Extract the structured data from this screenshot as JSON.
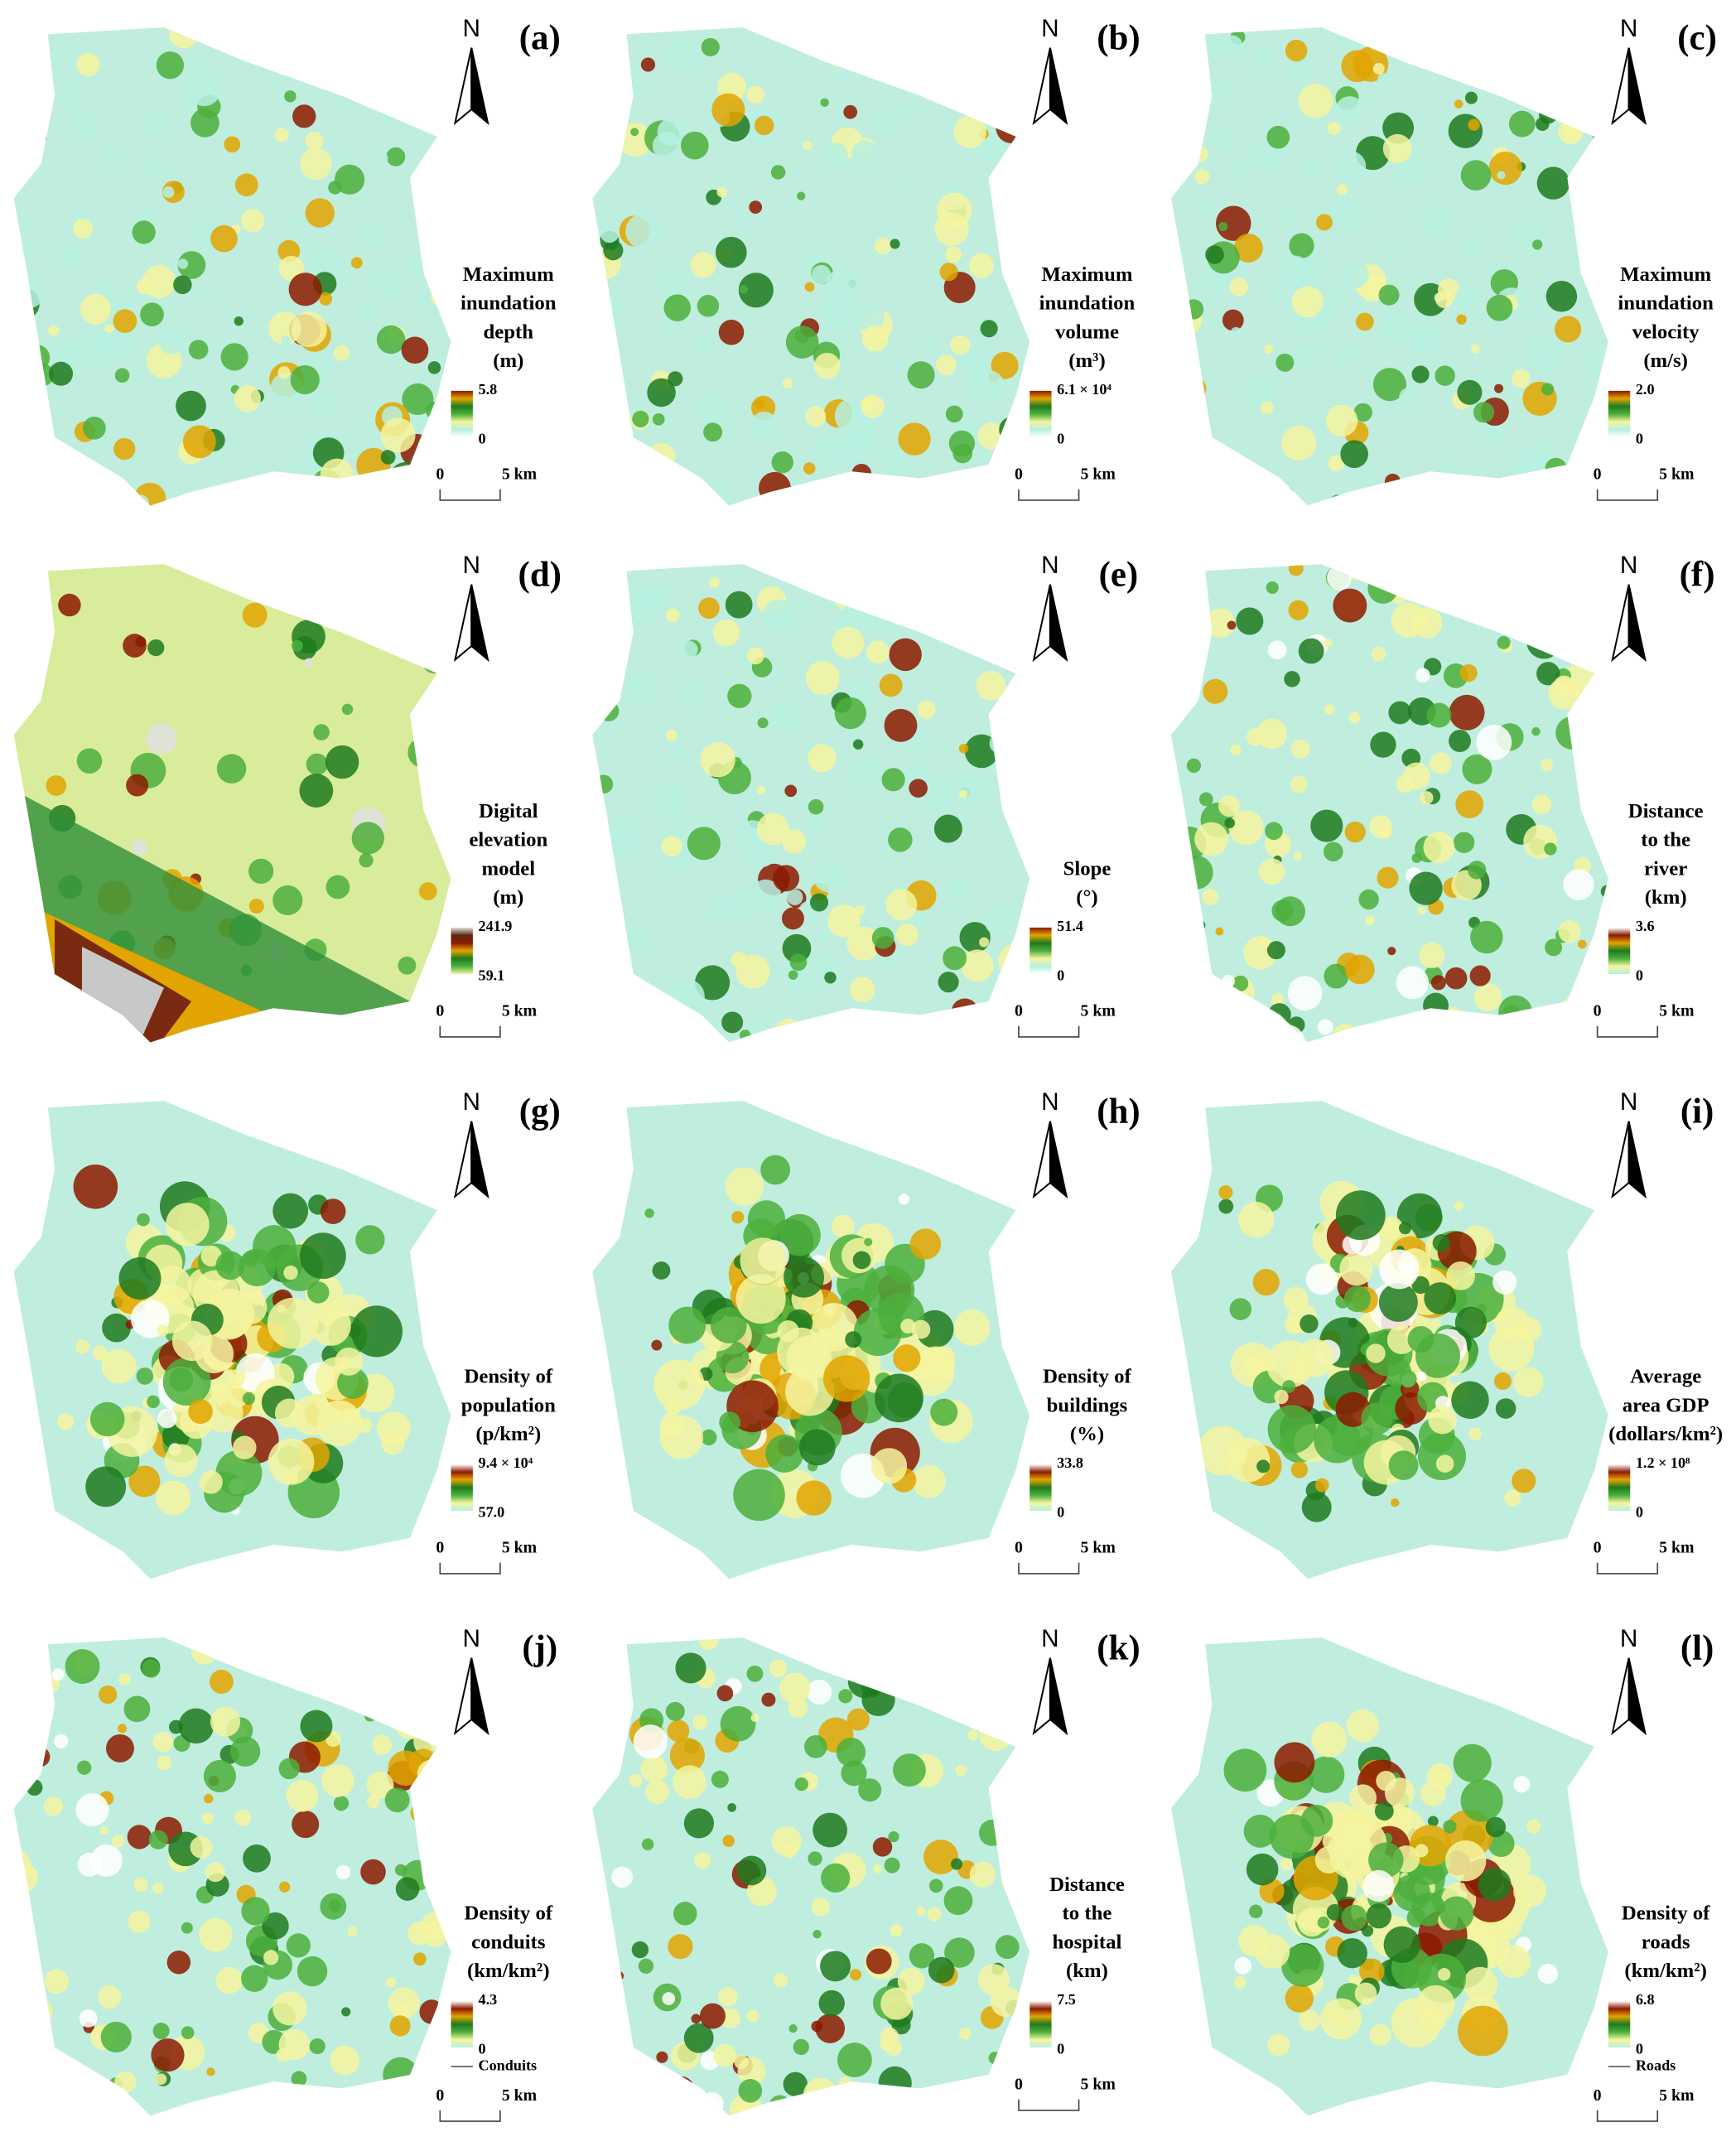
{
  "north_label": "N",
  "scale_bar": {
    "start": "0",
    "end": "5 km"
  },
  "panels": [
    {
      "label": "(a)",
      "title": [
        "Maximum",
        "inundation",
        "depth",
        "(m)"
      ],
      "max": "5.8",
      "min": "0"
    },
    {
      "label": "(b)",
      "title": [
        "Maximum",
        "inundation",
        "volume",
        "(m³)"
      ],
      "max": "6.1 × 10⁴",
      "min": "0"
    },
    {
      "label": "(c)",
      "title": [
        "Maximum",
        "inundation",
        "velocity",
        "(m/s)"
      ],
      "max": "2.0",
      "min": "0"
    },
    {
      "label": "(d)",
      "title": [
        "Digital",
        "elevation",
        "model",
        "(m)"
      ],
      "max": "241.9",
      "min": "59.1"
    },
    {
      "label": "(e)",
      "title": [
        "Slope",
        "(°)"
      ],
      "max": "51.4",
      "min": "0"
    },
    {
      "label": "(f)",
      "title": [
        "Distance",
        "to the",
        "river",
        "(km)"
      ],
      "max": "3.6",
      "min": "0"
    },
    {
      "label": "(g)",
      "title": [
        "Density of",
        "population",
        "(p/km²)"
      ],
      "max": "9.4 × 10⁴",
      "min": "57.0"
    },
    {
      "label": "(h)",
      "title": [
        "Density of",
        "buildings",
        "(%)"
      ],
      "max": "33.8",
      "min": "0"
    },
    {
      "label": "(i)",
      "title": [
        "Average",
        "area GDP",
        "(dollars/km²)"
      ],
      "max": "1.2 × 10⁸",
      "min": "0"
    },
    {
      "label": "(j)",
      "title": [
        "Density of",
        "conduits",
        "(km/km²)"
      ],
      "max": "4.3",
      "min": "0",
      "extra": "Conduits"
    },
    {
      "label": "(k)",
      "title": [
        "Distance",
        "to the",
        "hospital",
        "(km)"
      ],
      "max": "7.5",
      "min": "0"
    },
    {
      "label": "(l)",
      "title": [
        "Density of",
        "roads",
        "(km/km²)"
      ],
      "max": "6.8",
      "min": "0",
      "extra": "Roads"
    }
  ]
}
